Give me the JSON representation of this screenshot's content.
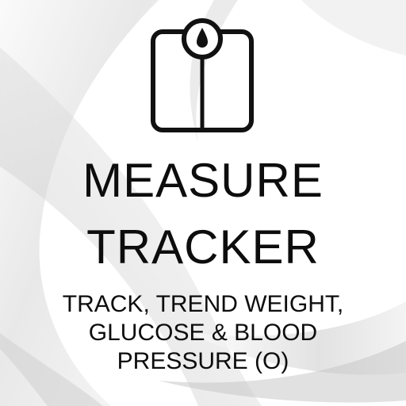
{
  "app": {
    "title_line1": "MEASURE",
    "title_line2": "TRACKER",
    "subtitle": "TRACK, TREND WEIGHT, GLUCOSE & BLOOD PRESSURE (O)"
  },
  "icon": {
    "name": "weight-scale-icon"
  },
  "colors": {
    "background": "#ffffff",
    "text": "#0d0d0d",
    "swirl_gray": "#c9c9c9"
  }
}
